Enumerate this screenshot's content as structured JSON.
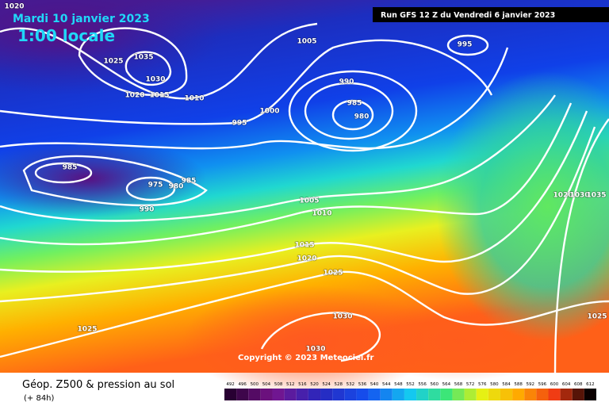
{
  "header": {
    "date": "Mardi 10 janvier 2023",
    "time": "1:00 locale",
    "run": "Run GFS 12 Z du Vendredi 6 janvier 2023"
  },
  "isobar_labels": [
    1020,
    1025,
    1035,
    1030,
    1020,
    1015,
    1010,
    1005,
    995,
    990,
    985,
    980,
    1000,
    995,
    985,
    975,
    985,
    980,
    990,
    1005,
    1010,
    1015,
    1020,
    1025,
    1030,
    1030,
    1025,
    1025,
    1020,
    1030,
    1035
  ],
  "copyright": "Copyright © 2023 Meteociel.fr",
  "legend": {
    "title": "Géop. Z500 & pression au sol",
    "lead": "(+ 84h)",
    "scale": [
      492,
      496,
      500,
      504,
      508,
      512,
      516,
      520,
      524,
      528,
      532,
      536,
      540,
      544,
      548,
      552,
      556,
      560,
      564,
      568,
      572,
      576,
      580,
      584,
      588,
      592,
      596,
      600,
      604,
      608,
      612
    ]
  }
}
